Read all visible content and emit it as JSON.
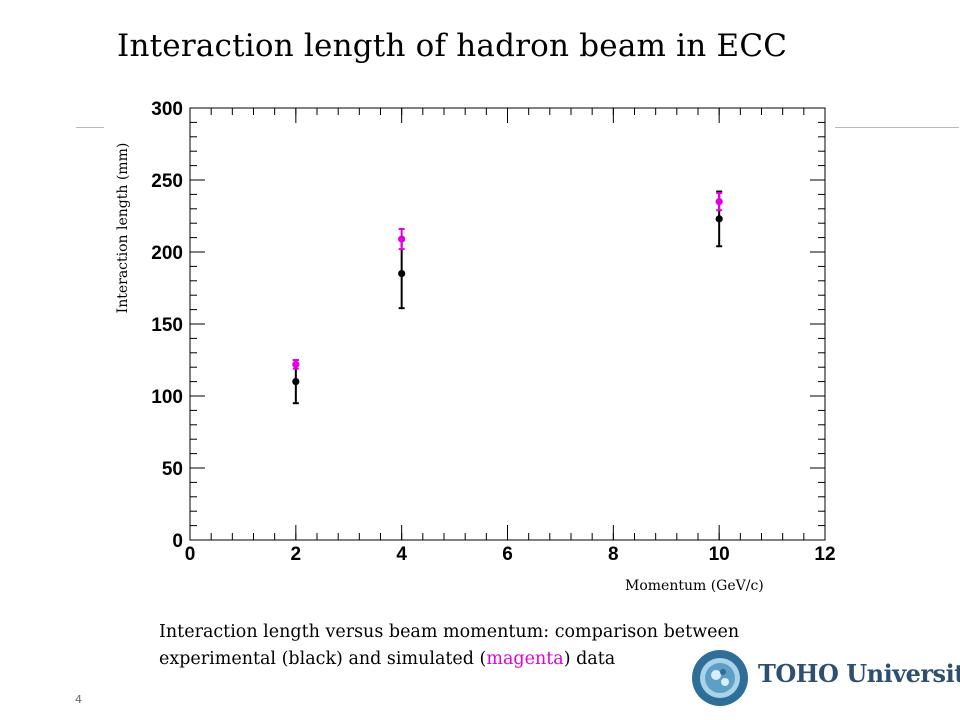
{
  "slide": {
    "title": "Interaction length of hadron beam in ECC",
    "page_number": "4"
  },
  "caption": {
    "part1": "Interaction length versus beam momentum: comparison between",
    "part2a": "experimental (black) and simulated (",
    "part2b": "magenta",
    "part2c": ") data"
  },
  "logo": {
    "name": "TOHO University",
    "seal_text": "TOHO UNIVERSITY · NATURE · LIFE · HUMAN"
  },
  "colors": {
    "experimental": "#000000",
    "simulated": "#e000e0",
    "axis": "#000000",
    "logo": "#2f4f70"
  },
  "chart_data": {
    "type": "scatter",
    "title": "",
    "xlabel": "Momentum (GeV/c)",
    "ylabel": "Interaction length (mm)",
    "xlim": [
      0,
      12
    ],
    "ylim": [
      0,
      300
    ],
    "xticks": [
      0,
      2,
      4,
      6,
      8,
      10,
      12
    ],
    "yticks": [
      0,
      50,
      100,
      150,
      200,
      250,
      300
    ],
    "grid": false,
    "legend": "none",
    "series": [
      {
        "color": "#000000",
        "points": [
          {
            "x": 2,
            "y": 110,
            "yerr": 15
          },
          {
            "x": 4,
            "y": 185,
            "yerr": 24
          },
          {
            "x": 10,
            "y": 223,
            "yerr": 19
          }
        ]
      },
      {
        "color": "#e000e0",
        "points": [
          {
            "x": 2,
            "y": 122,
            "yerr": 3
          },
          {
            "x": 4,
            "y": 209,
            "yerr": 7
          },
          {
            "x": 10,
            "y": 235,
            "yerr": 6
          }
        ]
      }
    ]
  }
}
